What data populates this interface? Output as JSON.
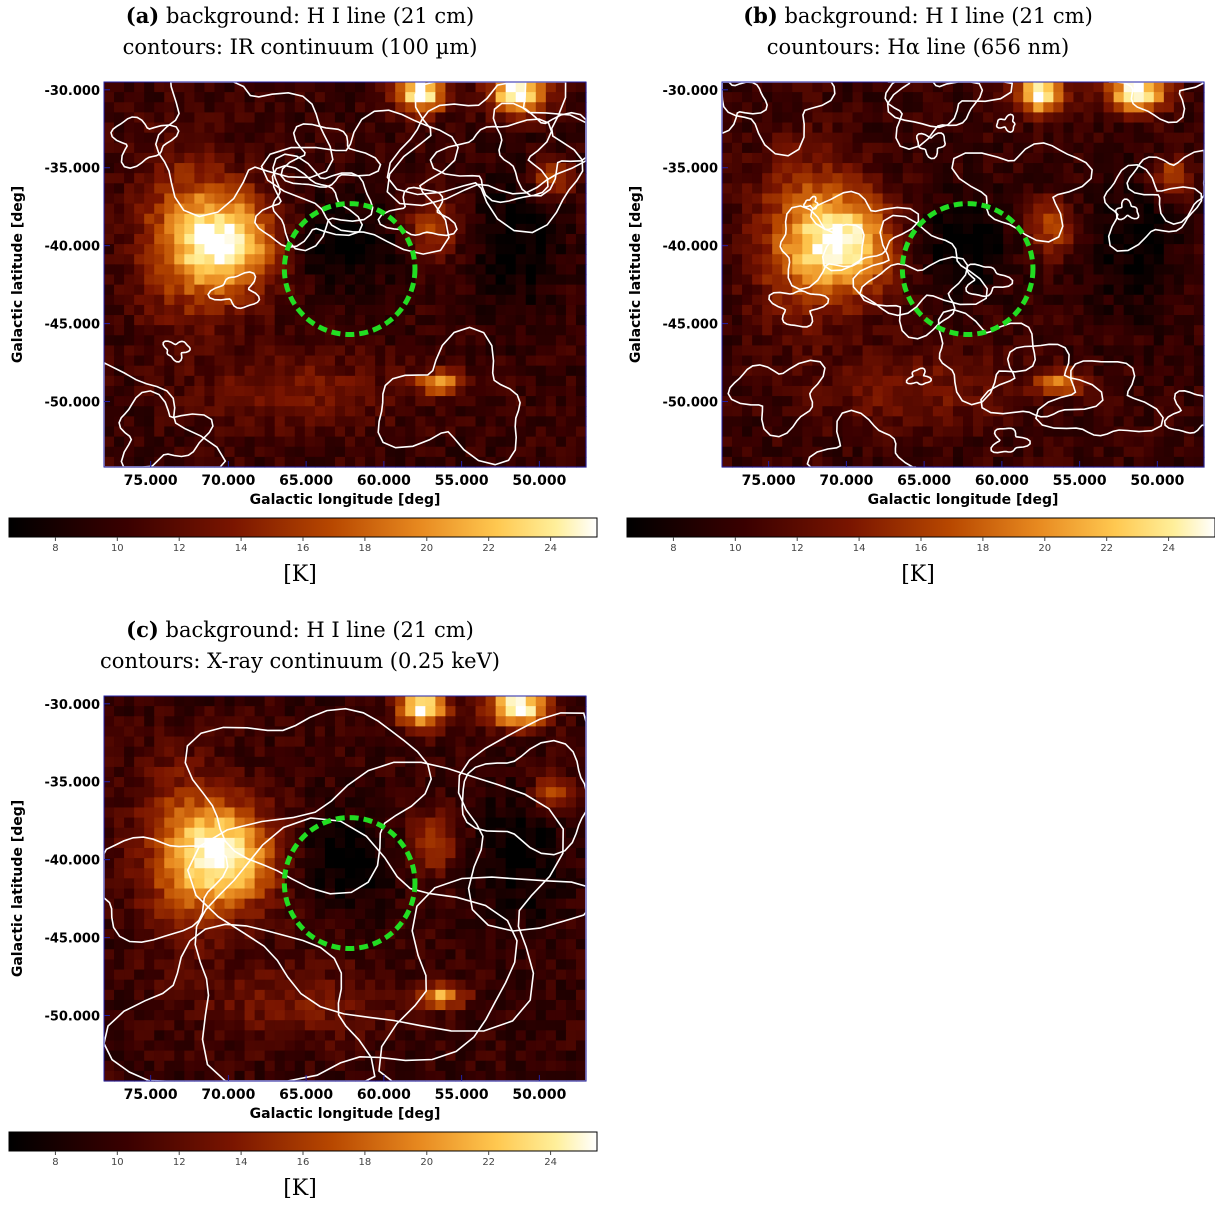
{
  "chart_data": [
    {
      "type": "heatmap",
      "panel_label": "(a)",
      "title_line1": "background: H I line (21 cm)",
      "title_line2": "contours: IR continuum (100 µm)",
      "xlabel": "Galactic longitude [deg]",
      "ylabel": "Galactic latitude [deg]",
      "xlim": [
        78,
        47
      ],
      "ylim": [
        -54.2,
        -29.5
      ],
      "x_ticks": [
        "75.000",
        "70.000",
        "65.000",
        "60.000",
        "55.000",
        "50.000"
      ],
      "x_tick_values": [
        75,
        70,
        65,
        60,
        55,
        50
      ],
      "y_ticks": [
        "-30.000",
        "-35.000",
        "-40.000",
        "-45.000",
        "-50.000"
      ],
      "y_tick_values": [
        -30,
        -35,
        -40,
        -45,
        -50
      ],
      "colorbar_ticks": [
        "8",
        "10",
        "12",
        "14",
        "16",
        "18",
        "20",
        "22",
        "24"
      ],
      "colorbar_values": [
        8,
        10,
        12,
        14,
        16,
        18,
        20,
        22,
        24
      ],
      "colorbar_range": [
        6.5,
        25.5
      ],
      "colorbar_unit": "[K]",
      "circle": {
        "center_lon": 62.2,
        "center_lat": -41.5,
        "radius_deg": 4.2,
        "color": "#22dd22"
      },
      "contour_color": "#ffffff",
      "seed": 1
    },
    {
      "type": "heatmap",
      "panel_label": "(b)",
      "title_line1": "background: H I line (21 cm)",
      "title_line2": "countours: Hα line (656 nm)",
      "xlabel": "Galactic longitude [deg]",
      "ylabel": "Galactic latitude [deg]",
      "xlim": [
        78,
        47
      ],
      "ylim": [
        -54.2,
        -29.5
      ],
      "x_ticks": [
        "75.000",
        "70.000",
        "65.000",
        "60.000",
        "55.000",
        "50.000"
      ],
      "x_tick_values": [
        75,
        70,
        65,
        60,
        55,
        50
      ],
      "y_ticks": [
        "-30.000",
        "-35.000",
        "-40.000",
        "-45.000",
        "-50.000"
      ],
      "y_tick_values": [
        -30,
        -35,
        -40,
        -45,
        -50
      ],
      "colorbar_ticks": [
        "8",
        "10",
        "12",
        "14",
        "16",
        "18",
        "20",
        "22",
        "24"
      ],
      "colorbar_values": [
        8,
        10,
        12,
        14,
        16,
        18,
        20,
        22,
        24
      ],
      "colorbar_range": [
        6.5,
        25.5
      ],
      "colorbar_unit": "[K]",
      "circle": {
        "center_lon": 62.2,
        "center_lat": -41.5,
        "radius_deg": 4.2,
        "color": "#22dd22"
      },
      "contour_color": "#ffffff",
      "seed": 2
    },
    {
      "type": "heatmap",
      "panel_label": "(c)",
      "title_line1": "background: H I line (21 cm)",
      "title_line2": "contours: X-ray continuum (0.25 keV)",
      "xlabel": "Galactic longitude [deg]",
      "ylabel": "Galactic latitude [deg]",
      "xlim": [
        78,
        47
      ],
      "ylim": [
        -54.2,
        -29.5
      ],
      "x_ticks": [
        "75.000",
        "70.000",
        "65.000",
        "60.000",
        "55.000",
        "50.000"
      ],
      "x_tick_values": [
        75,
        70,
        65,
        60,
        55,
        50
      ],
      "y_ticks": [
        "-30.000",
        "-35.000",
        "-40.000",
        "-45.000",
        "-50.000"
      ],
      "y_tick_values": [
        -30,
        -35,
        -40,
        -45,
        -50
      ],
      "colorbar_ticks": [
        "8",
        "10",
        "12",
        "14",
        "16",
        "18",
        "20",
        "22",
        "24"
      ],
      "colorbar_values": [
        8,
        10,
        12,
        14,
        16,
        18,
        20,
        22,
        24
      ],
      "colorbar_range": [
        6.5,
        25.5
      ],
      "colorbar_unit": "[K]",
      "circle": {
        "center_lon": 62.2,
        "center_lat": -41.5,
        "radius_deg": 4.2,
        "color": "#22dd22"
      },
      "contour_color": "#ffffff",
      "seed": 3
    }
  ]
}
